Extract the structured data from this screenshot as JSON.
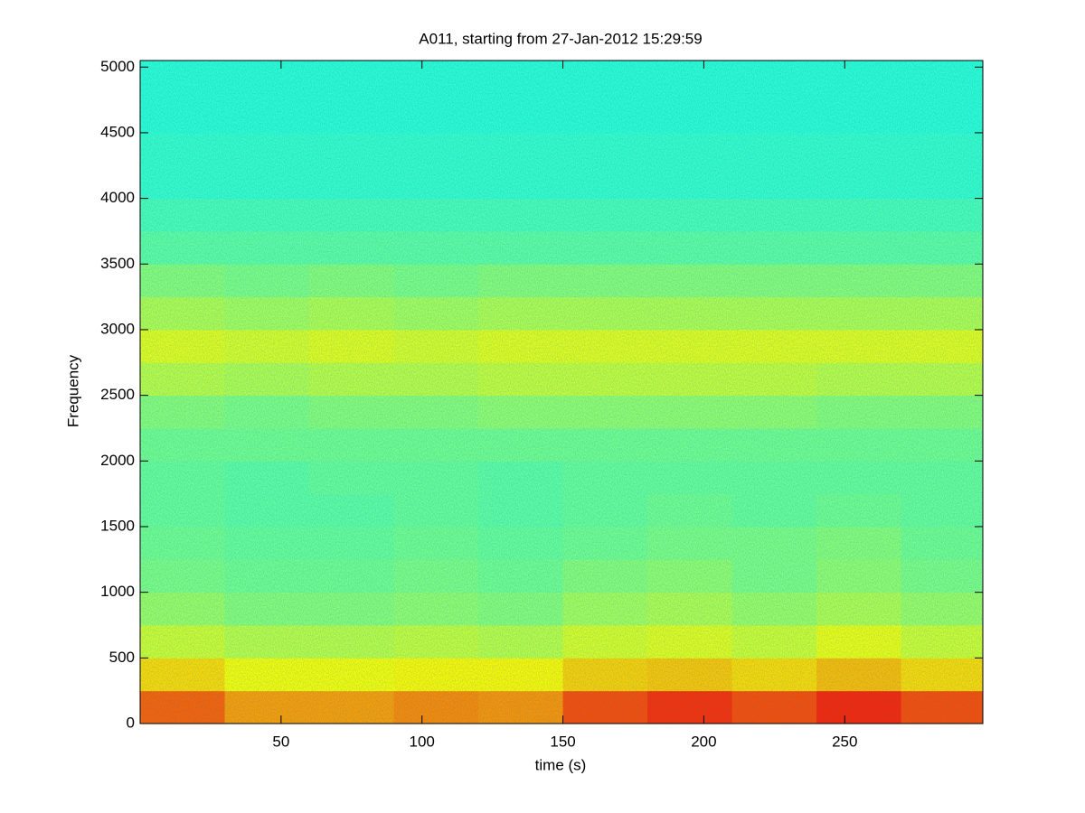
{
  "chart_data": {
    "type": "heatmap",
    "title": "A011, starting from 27-Jan-2012 15:29:59",
    "xlabel": "time (s)",
    "ylabel": "Frequency",
    "xlim": [
      0,
      299
    ],
    "ylim": [
      0,
      5050
    ],
    "xticks": [
      50,
      100,
      150,
      200,
      250
    ],
    "yticks": [
      0,
      500,
      1000,
      1500,
      2000,
      2500,
      3000,
      3500,
      4000,
      4500,
      5000
    ],
    "colormap": "jet",
    "zlim": [
      0,
      1
    ],
    "x_bins": [
      0,
      30,
      60,
      90,
      120,
      150,
      180,
      210,
      240,
      270,
      299
    ],
    "y_bins": [
      0,
      250,
      500,
      750,
      1000,
      1250,
      1500,
      1750,
      2000,
      2250,
      2500,
      2750,
      3000,
      3250,
      3500,
      3750,
      4000,
      4250,
      4500,
      4750,
      5000,
      5050
    ],
    "z": [
      [
        0.78,
        0.72,
        0.72,
        0.74,
        0.73,
        0.8,
        0.83,
        0.8,
        0.84,
        0.8
      ],
      [
        0.66,
        0.62,
        0.62,
        0.63,
        0.63,
        0.67,
        0.68,
        0.66,
        0.69,
        0.66
      ],
      [
        0.58,
        0.56,
        0.56,
        0.57,
        0.56,
        0.59,
        0.6,
        0.58,
        0.61,
        0.58
      ],
      [
        0.53,
        0.51,
        0.51,
        0.52,
        0.51,
        0.54,
        0.55,
        0.53,
        0.55,
        0.53
      ],
      [
        0.5,
        0.49,
        0.49,
        0.5,
        0.49,
        0.51,
        0.52,
        0.5,
        0.52,
        0.5
      ],
      [
        0.49,
        0.48,
        0.48,
        0.49,
        0.48,
        0.49,
        0.5,
        0.5,
        0.51,
        0.49
      ],
      [
        0.48,
        0.47,
        0.47,
        0.48,
        0.47,
        0.48,
        0.49,
        0.48,
        0.49,
        0.48
      ],
      [
        0.48,
        0.47,
        0.48,
        0.48,
        0.47,
        0.48,
        0.48,
        0.48,
        0.48,
        0.48
      ],
      [
        0.49,
        0.49,
        0.49,
        0.49,
        0.49,
        0.49,
        0.49,
        0.49,
        0.49,
        0.49
      ],
      [
        0.51,
        0.5,
        0.51,
        0.51,
        0.52,
        0.52,
        0.52,
        0.52,
        0.51,
        0.51
      ],
      [
        0.56,
        0.55,
        0.56,
        0.56,
        0.57,
        0.57,
        0.57,
        0.57,
        0.56,
        0.56
      ],
      [
        0.6,
        0.59,
        0.6,
        0.59,
        0.6,
        0.6,
        0.6,
        0.6,
        0.6,
        0.6
      ],
      [
        0.55,
        0.54,
        0.55,
        0.54,
        0.55,
        0.55,
        0.55,
        0.55,
        0.55,
        0.55
      ],
      [
        0.51,
        0.5,
        0.51,
        0.5,
        0.51,
        0.51,
        0.51,
        0.51,
        0.51,
        0.51
      ],
      [
        0.47,
        0.47,
        0.47,
        0.47,
        0.47,
        0.47,
        0.47,
        0.47,
        0.47,
        0.47
      ],
      [
        0.45,
        0.45,
        0.45,
        0.45,
        0.45,
        0.45,
        0.45,
        0.45,
        0.45,
        0.45
      ],
      [
        0.43,
        0.43,
        0.43,
        0.43,
        0.43,
        0.43,
        0.43,
        0.43,
        0.43,
        0.43
      ],
      [
        0.43,
        0.43,
        0.43,
        0.43,
        0.43,
        0.43,
        0.43,
        0.43,
        0.43,
        0.43
      ],
      [
        0.42,
        0.42,
        0.42,
        0.42,
        0.42,
        0.42,
        0.42,
        0.42,
        0.42,
        0.42
      ],
      [
        0.42,
        0.42,
        0.42,
        0.42,
        0.42,
        0.42,
        0.42,
        0.42,
        0.42,
        0.42
      ],
      [
        0.42,
        0.42,
        0.42,
        0.42,
        0.42,
        0.42,
        0.42,
        0.42,
        0.42,
        0.42
      ]
    ]
  }
}
